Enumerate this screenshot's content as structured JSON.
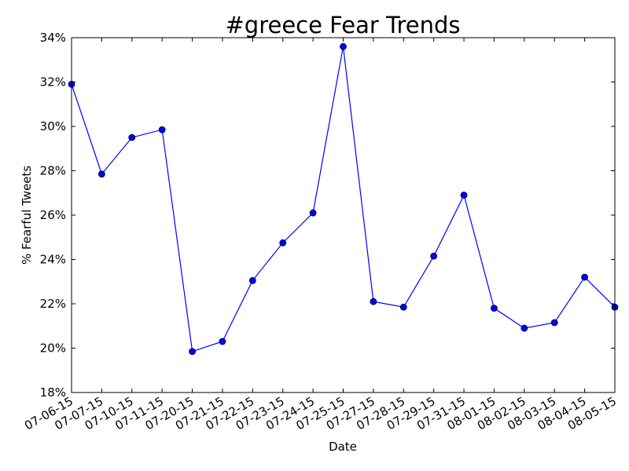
{
  "chart_data": {
    "type": "line",
    "title": "#greece Fear Trends",
    "xlabel": "Date",
    "ylabel": "% Fearful Tweets",
    "ylim": [
      18,
      34
    ],
    "yticks": [
      "18%",
      "20%",
      "22%",
      "24%",
      "26%",
      "28%",
      "30%",
      "32%",
      "34%"
    ],
    "grid": false,
    "legend": "none",
    "categories": [
      "07-06-15",
      "07-07-15",
      "07-10-15",
      "07-11-15",
      "07-20-15",
      "07-21-15",
      "07-22-15",
      "07-23-15",
      "07-24-15",
      "07-25-15",
      "07-27-15",
      "07-28-15",
      "07-29-15",
      "07-31-15",
      "08-01-15",
      "08-02-15",
      "08-03-15",
      "08-04-15",
      "08-05-15"
    ],
    "series": [
      {
        "values": [
          31.9,
          27.85,
          29.5,
          29.85,
          19.85,
          20.3,
          23.05,
          24.75,
          26.1,
          33.6,
          22.1,
          21.85,
          24.15,
          26.9,
          21.8,
          20.9,
          21.15,
          23.2,
          21.85
        ],
        "color": "#0000ff"
      }
    ]
  }
}
